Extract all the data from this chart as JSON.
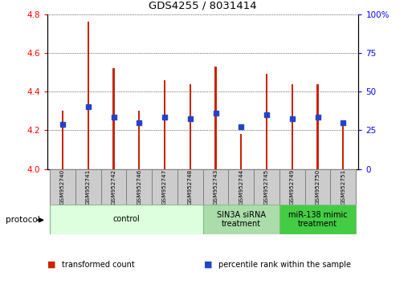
{
  "title": "GDS4255 / 8031414",
  "samples": [
    "GSM952740",
    "GSM952741",
    "GSM952742",
    "GSM952746",
    "GSM952747",
    "GSM952748",
    "GSM952743",
    "GSM952744",
    "GSM952745",
    "GSM952749",
    "GSM952750",
    "GSM952751"
  ],
  "bar_tops": [
    4.3,
    4.76,
    4.52,
    4.3,
    4.46,
    4.44,
    4.53,
    4.18,
    4.49,
    4.44,
    4.44,
    4.23
  ],
  "bar_base": 4.0,
  "percentile_values": [
    4.23,
    4.32,
    4.27,
    4.24,
    4.27,
    4.26,
    4.29,
    4.22,
    4.28,
    4.26,
    4.27,
    4.24
  ],
  "bar_color": "#cc2200",
  "percentile_color": "#2244cc",
  "ylim_left": [
    4.0,
    4.8
  ],
  "ylim_right": [
    0,
    100
  ],
  "yticks_left": [
    4.0,
    4.2,
    4.4,
    4.6,
    4.8
  ],
  "yticks_right": [
    0,
    25,
    50,
    75,
    100
  ],
  "groups": [
    {
      "label": "control",
      "start": 0,
      "end": 6,
      "color": "#ddffdd",
      "edge_color": "#88bb88"
    },
    {
      "label": "SIN3A siRNA\ntreatment",
      "start": 6,
      "end": 9,
      "color": "#aaddaa",
      "edge_color": "#88bb88"
    },
    {
      "label": "miR-138 mimic\ntreatment",
      "start": 9,
      "end": 12,
      "color": "#44cc44",
      "edge_color": "#88bb88"
    }
  ],
  "legend_items": [
    {
      "label": "transformed count",
      "color": "#cc2200"
    },
    {
      "label": "percentile rank within the sample",
      "color": "#2244cc"
    }
  ],
  "protocol_label": "protocol",
  "bar_width": 0.07
}
